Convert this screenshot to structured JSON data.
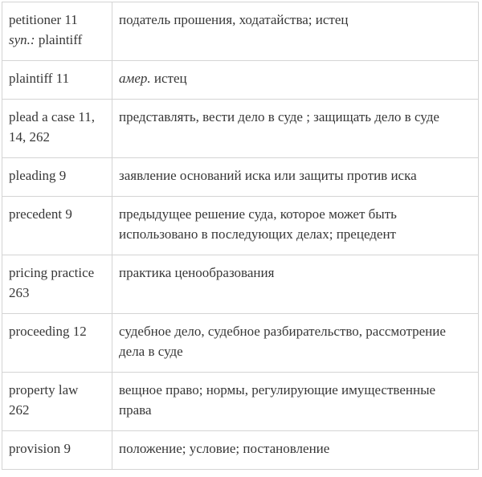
{
  "colors": {
    "background": "#ffffff",
    "border": "#d4d4d4",
    "text": "#373737"
  },
  "table": {
    "columns": [
      "term",
      "definition"
    ],
    "rows": [
      {
        "term_lines": [
          [
            {
              "text": "petitioner 11",
              "italic": false
            }
          ],
          [
            {
              "text": "syn.:",
              "italic": true
            },
            {
              "text": " plaintiff",
              "italic": false
            }
          ]
        ],
        "def_lines": [
          [
            {
              "text": "податель прошения, ходатайства; истец",
              "italic": false
            }
          ]
        ]
      },
      {
        "term_lines": [
          [
            {
              "text": "plaintiff 11",
              "italic": false
            }
          ]
        ],
        "def_lines": [
          [
            {
              "text": "амер.",
              "italic": true
            },
            {
              "text": " истец",
              "italic": false
            }
          ]
        ]
      },
      {
        "term_lines": [
          [
            {
              "text": "plead a case 11,",
              "italic": false
            }
          ],
          [
            {
              "text": "14, 262",
              "italic": false
            }
          ]
        ],
        "def_lines": [
          [
            {
              "text": "представлять, вести дело в суде ; защищать дело в суде",
              "italic": false
            }
          ]
        ]
      },
      {
        "term_lines": [
          [
            {
              "text": "pleading 9",
              "italic": false
            }
          ]
        ],
        "def_lines": [
          [
            {
              "text": "заявление оснований иска или защиты против иска",
              "italic": false
            }
          ]
        ]
      },
      {
        "term_lines": [
          [
            {
              "text": "precedent 9",
              "italic": false
            }
          ]
        ],
        "def_lines": [
          [
            {
              "text": "предыдущее решение суда, которое может быть",
              "italic": false
            }
          ],
          [
            {
              "text": "использовано в последующих делах; прецедент",
              "italic": false
            }
          ]
        ]
      },
      {
        "term_lines": [
          [
            {
              "text": "pricing practice",
              "italic": false
            }
          ],
          [
            {
              "text": "263",
              "italic": false
            }
          ]
        ],
        "def_lines": [
          [
            {
              "text": "практика ценообразования",
              "italic": false
            }
          ]
        ]
      },
      {
        "term_lines": [
          [
            {
              "text": "proceeding 12",
              "italic": false
            }
          ]
        ],
        "def_lines": [
          [
            {
              "text": "судебное дело, судебное разбирательство, рассмотрение",
              "italic": false
            }
          ],
          [
            {
              "text": "дела в суде",
              "italic": false
            }
          ]
        ]
      },
      {
        "term_lines": [
          [
            {
              "text": "property law",
              "italic": false
            }
          ],
          [
            {
              "text": "262",
              "italic": false
            }
          ]
        ],
        "def_lines": [
          [
            {
              "text": "вещное право; нормы, регулирующие имущественные",
              "italic": false
            }
          ],
          [
            {
              "text": "права",
              "italic": false
            }
          ]
        ]
      },
      {
        "term_lines": [
          [
            {
              "text": "provision 9",
              "italic": false
            }
          ]
        ],
        "def_lines": [
          [
            {
              "text": "положение; условие; постановление",
              "italic": false
            }
          ]
        ]
      }
    ]
  }
}
